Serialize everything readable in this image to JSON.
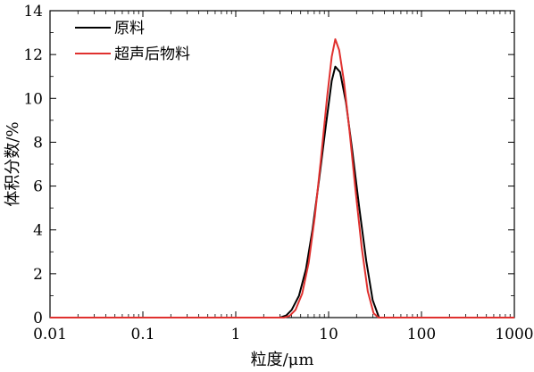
{
  "chart_data": {
    "type": "line",
    "xscale": "log",
    "xlim": [
      0.01,
      1000
    ],
    "ylim": [
      0,
      14
    ],
    "xlabel": "粒度/μm",
    "ylabel": "体积分数/%",
    "xticks": [
      {
        "value": 0.01,
        "label": "0.01"
      },
      {
        "value": 0.1,
        "label": "0.1"
      },
      {
        "value": 1,
        "label": "1"
      },
      {
        "value": 10,
        "label": "10"
      },
      {
        "value": 100,
        "label": "100"
      },
      {
        "value": 1000,
        "label": "1000"
      }
    ],
    "yticks": [
      {
        "value": 0,
        "label": "0"
      },
      {
        "value": 2,
        "label": "2"
      },
      {
        "value": 4,
        "label": "4"
      },
      {
        "value": 6,
        "label": "6"
      },
      {
        "value": 8,
        "label": "8"
      },
      {
        "value": 10,
        "label": "10"
      },
      {
        "value": 12,
        "label": "12"
      },
      {
        "value": 14,
        "label": "14"
      }
    ],
    "grid": false,
    "legend": "top-left",
    "series": [
      {
        "name": "原料",
        "color": "#000000",
        "x": [
          0.01,
          3.0,
          3.5,
          4.0,
          4.8,
          5.7,
          6.7,
          7.9,
          9.3,
          10.8,
          11.8,
          13.3,
          15.4,
          18.0,
          21.4,
          25.4,
          29.8,
          34.9,
          1000
        ],
        "y": [
          0,
          0,
          0.1,
          0.35,
          1.0,
          2.2,
          4.0,
          6.3,
          8.7,
          10.8,
          11.45,
          11.2,
          9.8,
          7.6,
          5.0,
          2.6,
          0.8,
          0,
          0
        ]
      },
      {
        "name": "超声后物料",
        "color": "#e0312f",
        "x": [
          0.01,
          3.3,
          3.8,
          4.4,
          5.2,
          6.1,
          7.1,
          8.3,
          9.6,
          10.8,
          11.8,
          13.0,
          14.6,
          16.8,
          19.5,
          22.7,
          26.4,
          30.5,
          34.5,
          1000
        ],
        "y": [
          0,
          0,
          0.08,
          0.35,
          1.1,
          2.5,
          4.6,
          7.3,
          10.0,
          11.9,
          12.7,
          12.2,
          10.8,
          8.5,
          5.8,
          3.2,
          1.2,
          0.2,
          0,
          0
        ]
      }
    ]
  }
}
